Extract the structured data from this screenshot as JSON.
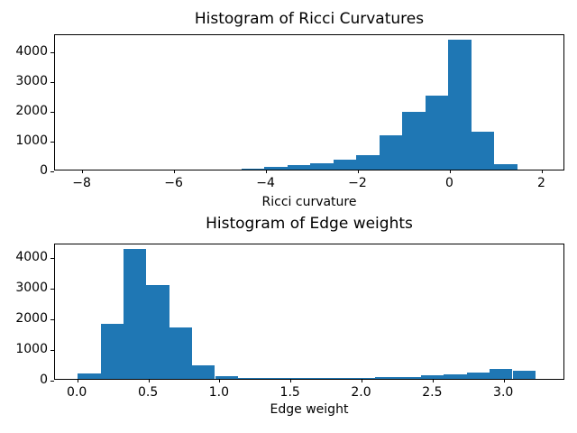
{
  "figure": {
    "background_color": "#ffffff",
    "bar_color": "#1f77b4",
    "text_color": "#000000"
  },
  "chart_data": [
    {
      "type": "bar",
      "subtype": "histogram",
      "title": "Histogram of Ricci Curvatures",
      "xlabel": "Ricci curvature",
      "ylabel": "",
      "grid": false,
      "legend": null,
      "xlim": [
        -8.6,
        2.5
      ],
      "ylim": [
        0,
        4600
      ],
      "bin_start": -4.55,
      "bin_width": 0.5,
      "bin_edges": [
        -4.55,
        -4.05,
        -3.55,
        -3.05,
        -2.55,
        -2.05,
        -1.55,
        -1.05,
        -0.55,
        -0.05,
        0.45,
        0.95,
        1.45
      ],
      "counts": [
        40,
        90,
        150,
        220,
        350,
        500,
        1150,
        1950,
        2500,
        4400,
        1280,
        180
      ],
      "xticks": [
        -8,
        -6,
        -4,
        -2,
        0,
        2
      ],
      "xtick_labels": [
        "−8",
        "−6",
        "−4",
        "−2",
        "0",
        "2"
      ],
      "yticks": [
        0,
        1000,
        2000,
        3000,
        4000
      ],
      "ytick_labels": [
        "0",
        "1000",
        "2000",
        "3000",
        "4000"
      ]
    },
    {
      "type": "bar",
      "subtype": "histogram",
      "title": "Histogram of Edge weights",
      "xlabel": "Edge weight",
      "ylabel": "",
      "grid": false,
      "legend": null,
      "xlim": [
        -0.16,
        3.43
      ],
      "ylim": [
        0,
        4450
      ],
      "bin_start": 0.0,
      "bin_width": 0.161,
      "bin_edges": [
        0.0,
        0.161,
        0.322,
        0.483,
        0.644,
        0.805,
        0.966,
        1.127,
        1.288,
        1.449,
        1.61,
        1.771,
        1.932,
        2.093,
        2.254,
        2.415,
        2.576,
        2.737,
        2.898,
        3.059,
        3.22
      ],
      "counts": [
        190,
        1800,
        4250,
        3070,
        1670,
        450,
        90,
        30,
        25,
        25,
        25,
        25,
        30,
        65,
        65,
        110,
        160,
        200,
        320,
        260
      ],
      "xticks": [
        0.0,
        0.5,
        1.0,
        1.5,
        2.0,
        2.5,
        3.0
      ],
      "xtick_labels": [
        "0.0",
        "0.5",
        "1.0",
        "1.5",
        "2.0",
        "2.5",
        "3.0"
      ],
      "yticks": [
        0,
        1000,
        2000,
        3000,
        4000
      ],
      "ytick_labels": [
        "0",
        "1000",
        "2000",
        "3000",
        "4000"
      ]
    }
  ]
}
